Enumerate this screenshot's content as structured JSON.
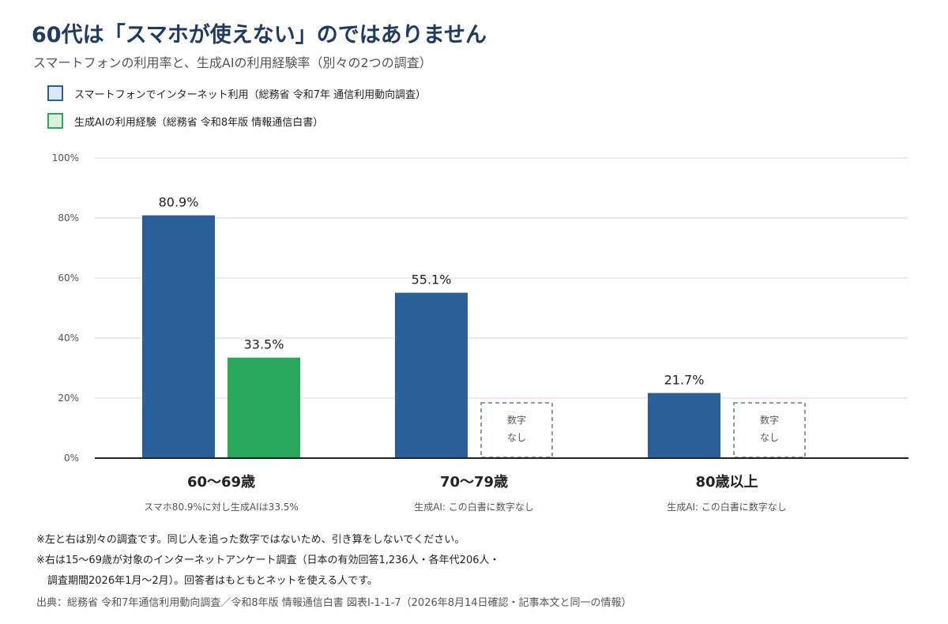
{
  "title": "60代は「スマホが使えない」のではありません",
  "subtitle": "スマートフォンの利用率と、生成AIの利用経験率（別々の2つの調査）",
  "legend": [
    {
      "label": "スマートフォンでインターネット利用（総務省 令和7年 通信利用動向調査）",
      "fill": "#dce8f5",
      "border": "#2a6099"
    },
    {
      "label": "生成AIの利用経験（総務省 令和8年版 情報通信白書）",
      "fill": "#d9f0df",
      "border": "#27a85a"
    }
  ],
  "colors": {
    "smartphone": "#2a6099",
    "genai": "#27a85a",
    "grid": "#d9d9d9",
    "axis": "#222222",
    "nodata_border": "#8a9bb0"
  },
  "nodata_label": [
    "数字",
    "なし"
  ],
  "chart_data": {
    "type": "bar",
    "categories": [
      "60〜69歳",
      "70〜79歳",
      "80歳以上"
    ],
    "category_notes": [
      "スマホ80.9%に対し生成AIは33.5%",
      "生成AI: この白書に数字なし",
      "生成AI: この白書に数字なし"
    ],
    "series": [
      {
        "name": "スマートフォンでインターネット利用（総務省 令和7年 通信利用動向調査）",
        "values": [
          80.9,
          55.1,
          21.7
        ]
      },
      {
        "name": "生成AIの利用経験（総務省 令和8年版 情報通信白書）",
        "values": [
          33.5,
          null,
          null
        ]
      }
    ],
    "data_labels": [
      [
        "80.9%",
        "55.1%",
        "21.7%"
      ],
      [
        "33.5%",
        "",
        ""
      ]
    ],
    "ylim": [
      0,
      100
    ],
    "yticks": [
      0,
      20,
      40,
      60,
      80,
      100
    ],
    "ytick_labels": [
      "0%",
      "20%",
      "40%",
      "60%",
      "80%",
      "100%"
    ],
    "grid": true
  },
  "notes": [
    "※左と右は別々の調査です。同じ人を追った数字ではないため、引き算をしないでください。",
    "※右は15〜69歳が対象のインターネットアンケート調査（日本の有効回答1,236人・各年代206人・",
    "調査期間2026年1月〜2月）。回答者はもともとネットを使える人です。"
  ],
  "source": "出典：総務省 令和7年通信利用動向調査／令和8年版 情報通信白書 図表Ⅰ-1-1-7（2026年8月14日確認・記事本文と同一の情報）"
}
